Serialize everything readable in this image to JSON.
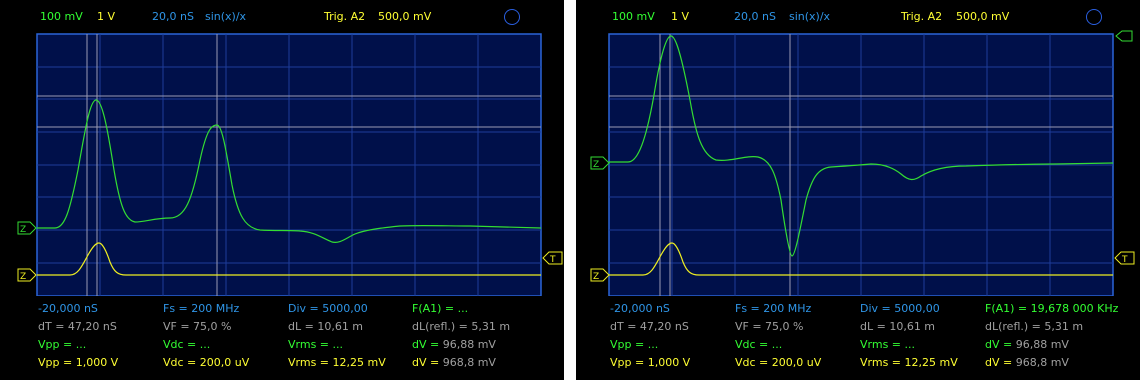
{
  "colors": {
    "grid_bg": "#00104a",
    "grid_line": "#1e3c9a",
    "border": "#2a64d8",
    "cursor": "#9a9ab4",
    "trace_green": "#33dd33",
    "trace_yellow": "#eeee22",
    "text_green": "#33ff33",
    "text_yellow": "#ffff33",
    "text_blue": "#2f95e6",
    "text_gray": "#a0a0a0"
  },
  "icons": {
    "marker_z": "Z",
    "marker_t": "T",
    "run_indicator": "circle-icon"
  },
  "scopes": [
    {
      "header": {
        "ch1_scale": "100 mV",
        "ch2_scale": "1 V",
        "timebase": "20,0 nS",
        "interp": "sin(x)/x",
        "trigger": "Trig. A2",
        "trigger_level": "500,0 mV"
      },
      "readout": {
        "r1": {
          "offset": "-20,000 nS",
          "fs": "Fs = 200 MHz",
          "div": "Div = 5000,00",
          "f": "F(A1) = ..."
        },
        "r2": {
          "dt": "dT = 47,20 nS",
          "vf": "VF = 75,0 %",
          "dl": "dL = 10,61 m",
          "dlrefl": "dL(refl.) = 5,31 m"
        },
        "r3": {
          "vpp": "Vpp = ...",
          "vdc": "Vdc = ...",
          "vrms": "Vrms = ...",
          "dv_label": "dV =",
          "dv_value": "96,88 mV"
        },
        "r4": {
          "vpp": "Vpp = 1,000 V",
          "vdc": "Vdc = 200,0 uV",
          "vrms": "Vrms = 12,25 mV",
          "dv_label": "dV =",
          "dv_value": "968,8 mV"
        }
      }
    },
    {
      "header": {
        "ch1_scale": "100 mV",
        "ch2_scale": "1 V",
        "timebase": "20,0 nS",
        "interp": "sin(x)/x",
        "trigger": "Trig. A2",
        "trigger_level": "500,0 mV"
      },
      "readout": {
        "r1": {
          "offset": "-20,000 nS",
          "fs": "Fs = 200 MHz",
          "div": "Div = 5000,00",
          "f": "F(A1) = 19,678 000 KHz"
        },
        "r2": {
          "dt": "dT = 47,20 nS",
          "vf": "VF = 75,0 %",
          "dl": "dL = 10,61 m",
          "dlrefl": "dL(refl.) = 5,31 m"
        },
        "r3": {
          "vpp": "Vpp = ...",
          "vdc": "Vdc = ...",
          "vrms": "Vrms = ...",
          "dv_label": "dV =",
          "dv_value": "96,88 mV"
        },
        "r4": {
          "vpp": "Vpp = 1,000 V",
          "vdc": "Vdc = 200,0 uV",
          "vrms": "Vrms = 12,25 mV",
          "dv_label": "dV =",
          "dv_value": "968,8 mV"
        }
      }
    }
  ]
}
